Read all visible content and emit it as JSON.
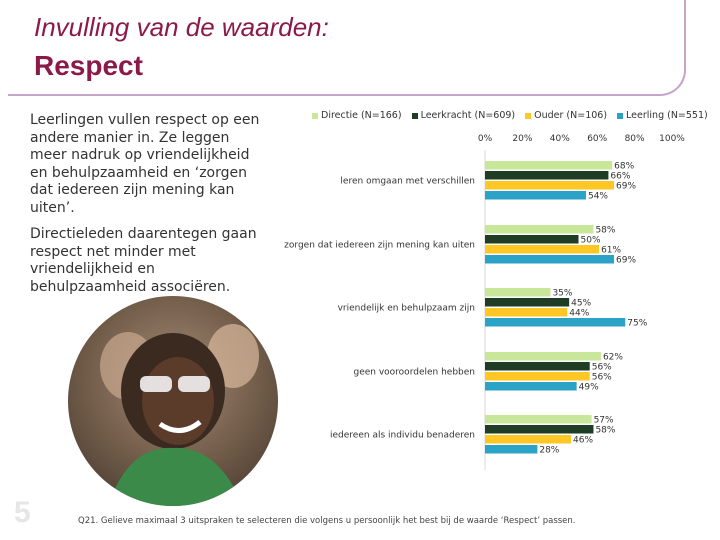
{
  "header": {
    "title_line1": "Invulling van de waarden:",
    "title_line2": "Respect"
  },
  "text": {
    "paragraph1": "Leerlingen vullen respect op een andere manier in. Ze leggen meer nadruk op vriendelijkheid en behulpzaamheid en ‘zorgen dat iedereen zijn mening kan uiten’.",
    "paragraph2": "Directieleden daarentegen gaan respect net minder met vriendelijkheid en behulpzaamheid associëren."
  },
  "footnote": "Q21. Gelieve maximaal 3 uitspraken te selecteren die volgens u persoonlijk het best bij de waarde ‘Respect’ passen.",
  "page_number": "5",
  "colors": {
    "title": "#8b1a4a",
    "directie": "#c9e79a",
    "leerkracht": "#1f3d24",
    "ouder": "#ffc726",
    "leerling": "#2aa3c7"
  },
  "chart_data": {
    "type": "bar",
    "orientation": "horizontal",
    "axis_ticks": [
      "0%",
      "20%",
      "40%",
      "60%",
      "80%",
      "100%"
    ],
    "xlim": [
      0,
      100
    ],
    "legend_position": "top",
    "categories": [
      "leren omgaan met verschillen",
      "zorgen dat iedereen zijn mening kan uiten",
      "vriendelijk en behulpzaam zijn",
      "geen vooroordelen hebben",
      "iedereen als individu benaderen"
    ],
    "series": [
      {
        "name": "Directie (N=166)",
        "values": [
          68,
          58,
          35,
          62,
          57
        ]
      },
      {
        "name": "Leerkracht (N=609)",
        "values": [
          66,
          50,
          45,
          56,
          58
        ]
      },
      {
        "name": "Ouder (N=106)",
        "values": [
          69,
          61,
          44,
          56,
          46
        ]
      },
      {
        "name": "Leerling (N=551)",
        "values": [
          54,
          69,
          75,
          49,
          28
        ]
      }
    ]
  }
}
